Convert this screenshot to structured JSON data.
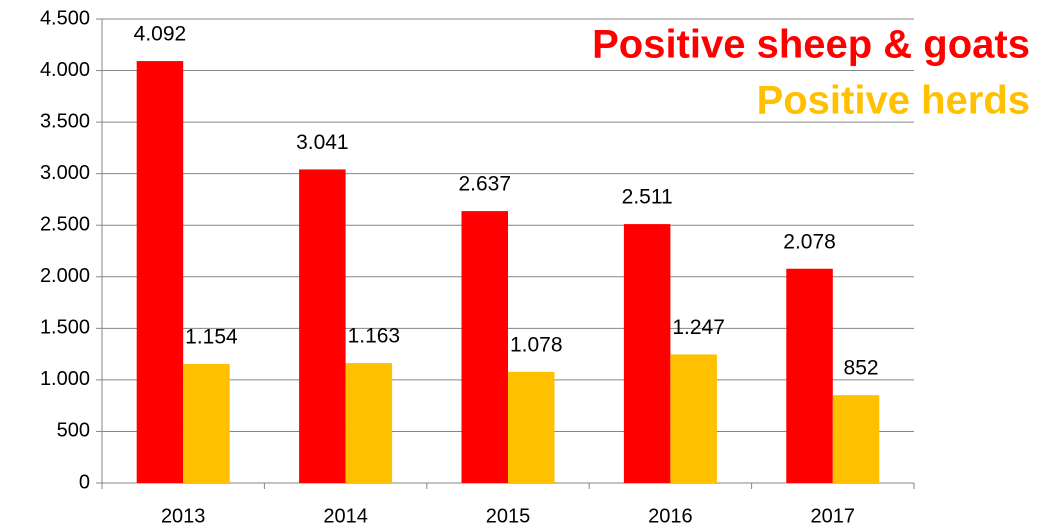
{
  "chart_data": {
    "type": "bar",
    "categories": [
      "2013",
      "2014",
      "2015",
      "2016",
      "2017"
    ],
    "series": [
      {
        "name": "Positive sheep & goats",
        "color": "#ff0000",
        "values": [
          4092,
          3041,
          2637,
          2511,
          2078
        ],
        "value_labels": [
          "4.092",
          "3.041",
          "2.637",
          "2.511",
          "2.078"
        ]
      },
      {
        "name": "Positive herds",
        "color": "#ffc000",
        "values": [
          1154,
          1163,
          1078,
          1247,
          852
        ],
        "value_labels": [
          "1.154",
          "1.163",
          "1.078",
          "1.247",
          "852"
        ]
      }
    ],
    "ylim": [
      0,
      4500
    ],
    "yticks": [
      0,
      500,
      {
        "value": 1000,
        "label": "1.000"
      },
      {
        "value": 1500,
        "label": "1.500"
      },
      {
        "value": 2000,
        "label": "2.000"
      },
      {
        "value": 2500,
        "label": "2.500"
      },
      {
        "value": 3000,
        "label": "3.000"
      },
      {
        "value": 3500,
        "label": "3.500"
      },
      {
        "value": 4000,
        "label": "4.000"
      },
      {
        "value": 4500,
        "label": "4.500"
      }
    ],
    "grid": true,
    "legend": "upper right"
  }
}
